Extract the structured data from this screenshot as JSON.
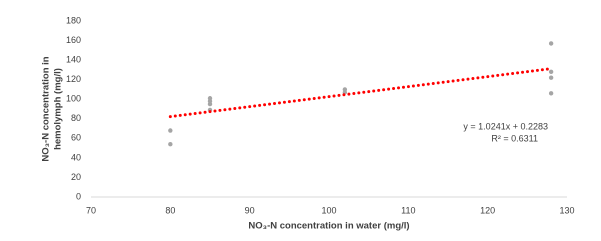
{
  "chart_data": {
    "type": "scatter",
    "xlabel": "NO₃-N concentration in water (mg/l)",
    "ylabel": [
      "NO₃-N  concentration in",
      "hemolymph (mg/l)"
    ],
    "x": [
      80,
      80,
      85,
      85,
      85,
      85,
      102,
      102,
      128,
      128,
      128,
      128
    ],
    "y": [
      68,
      54,
      101,
      98,
      95,
      89,
      110,
      107,
      157,
      128,
      122,
      106
    ],
    "color": "#a5a5a5",
    "xlim": [
      70,
      130
    ],
    "xticks": [
      70,
      80,
      90,
      100,
      110,
      120,
      130
    ],
    "ylim": [
      0,
      180
    ],
    "yticks": [
      0,
      20,
      40,
      60,
      80,
      100,
      120,
      140,
      160,
      180
    ],
    "trendline": {
      "slope": 1.0241,
      "intercept": 0.2283,
      "color": "#ff0000",
      "label": "y = 1.0241x + 0.2283",
      "r2_label": "R² = 0.6311"
    }
  }
}
